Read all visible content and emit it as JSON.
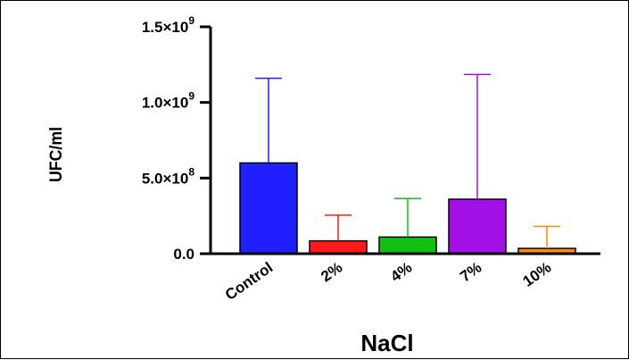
{
  "chart_data": {
    "type": "bar",
    "title": "",
    "xlabel": "NaCl",
    "ylabel": "UFC/ml",
    "categories": [
      "Control",
      "2%",
      "4%",
      "7%",
      "10%"
    ],
    "values": [
      600000000,
      85000000,
      110000000,
      360000000,
      35000000
    ],
    "errors": [
      560000000,
      170000000,
      255000000,
      825000000,
      145000000
    ],
    "colors": [
      "#1f1fff",
      "#ff1a1a",
      "#12c012",
      "#a310e6",
      "#ff8a00"
    ],
    "ylim": [
      0,
      1500000000
    ],
    "yticks": [
      {
        "value": 0,
        "mantissa": "0.0",
        "exp": ""
      },
      {
        "value": 500000000,
        "mantissa": "5.0×10",
        "exp": "8"
      },
      {
        "value": 1000000000,
        "mantissa": "1.0×10",
        "exp": "9"
      },
      {
        "value": 1500000000,
        "mantissa": "1.5×10",
        "exp": "9"
      }
    ],
    "grid": false,
    "legend": "none"
  }
}
